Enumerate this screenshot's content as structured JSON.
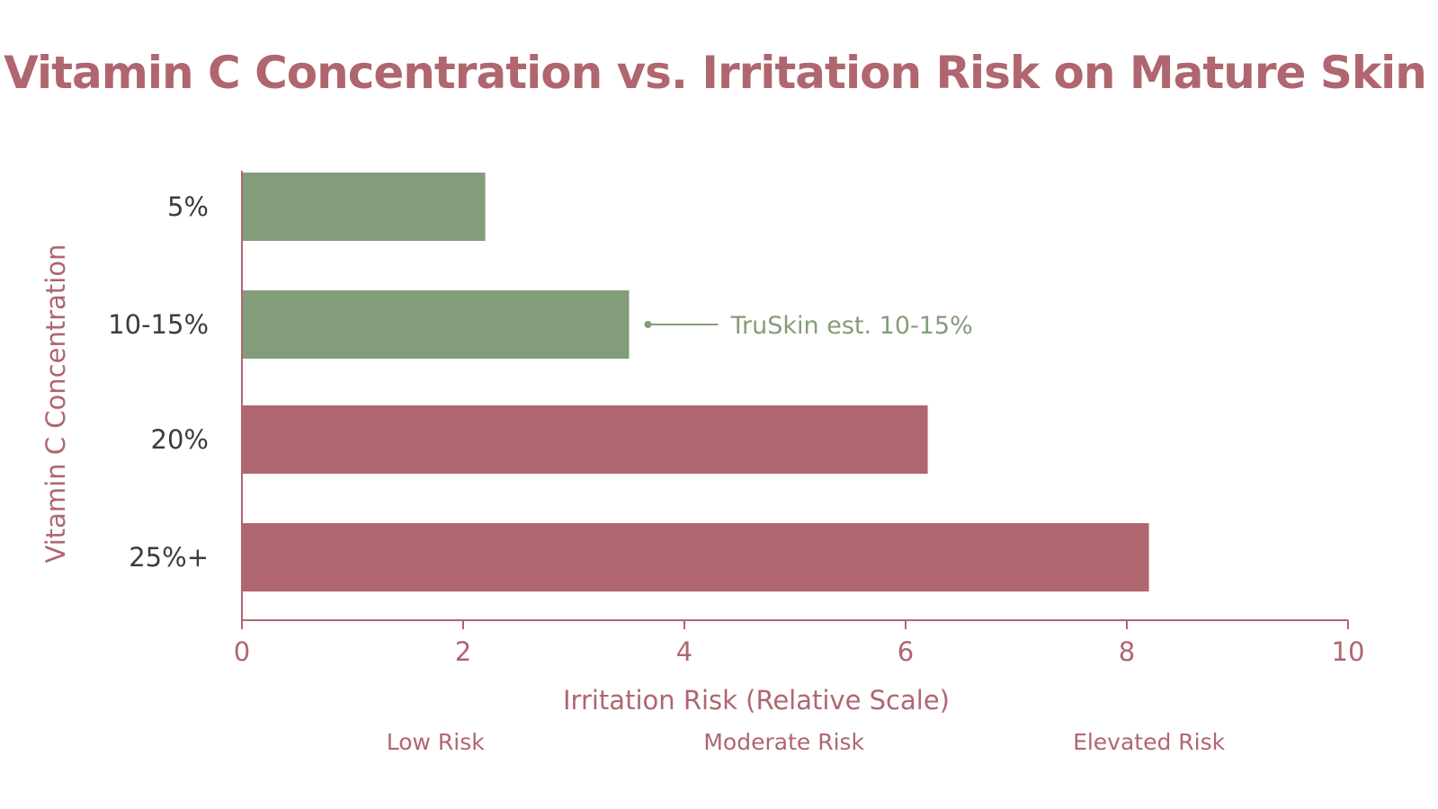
{
  "colors": {
    "accent": "#b0666f",
    "safe": "#839d7a",
    "elevated": "#b0666f",
    "axis": "#b0666f",
    "category_text": "#3c3c3c"
  },
  "chart_data": {
    "type": "bar",
    "orientation": "horizontal",
    "title": "Vitamin C Concentration vs. Irritation Risk on Mature Skin",
    "xlabel": "Irritation Risk (Relative Scale)",
    "ylabel": "Vitamin C Concentration",
    "xlim": [
      0,
      10
    ],
    "xticks": [
      "0",
      "2",
      "4",
      "6",
      "8",
      "10"
    ],
    "categories": [
      "5%",
      "10-15%",
      "20%",
      "25%+"
    ],
    "values": [
      2.2,
      3.5,
      6.2,
      8.2
    ],
    "bar_colors": [
      "#839d7a",
      "#839d7a",
      "#b0666f",
      "#b0666f"
    ],
    "grid": false,
    "annotation": {
      "category": "10-15%",
      "text": "TruSkin est. 10-15%"
    },
    "risk_bands": [
      {
        "label": "Low Risk",
        "center": 1.75
      },
      {
        "label": "Moderate Risk",
        "center": 4.9
      },
      {
        "label": "Elevated Risk",
        "center": 8.2
      }
    ]
  }
}
